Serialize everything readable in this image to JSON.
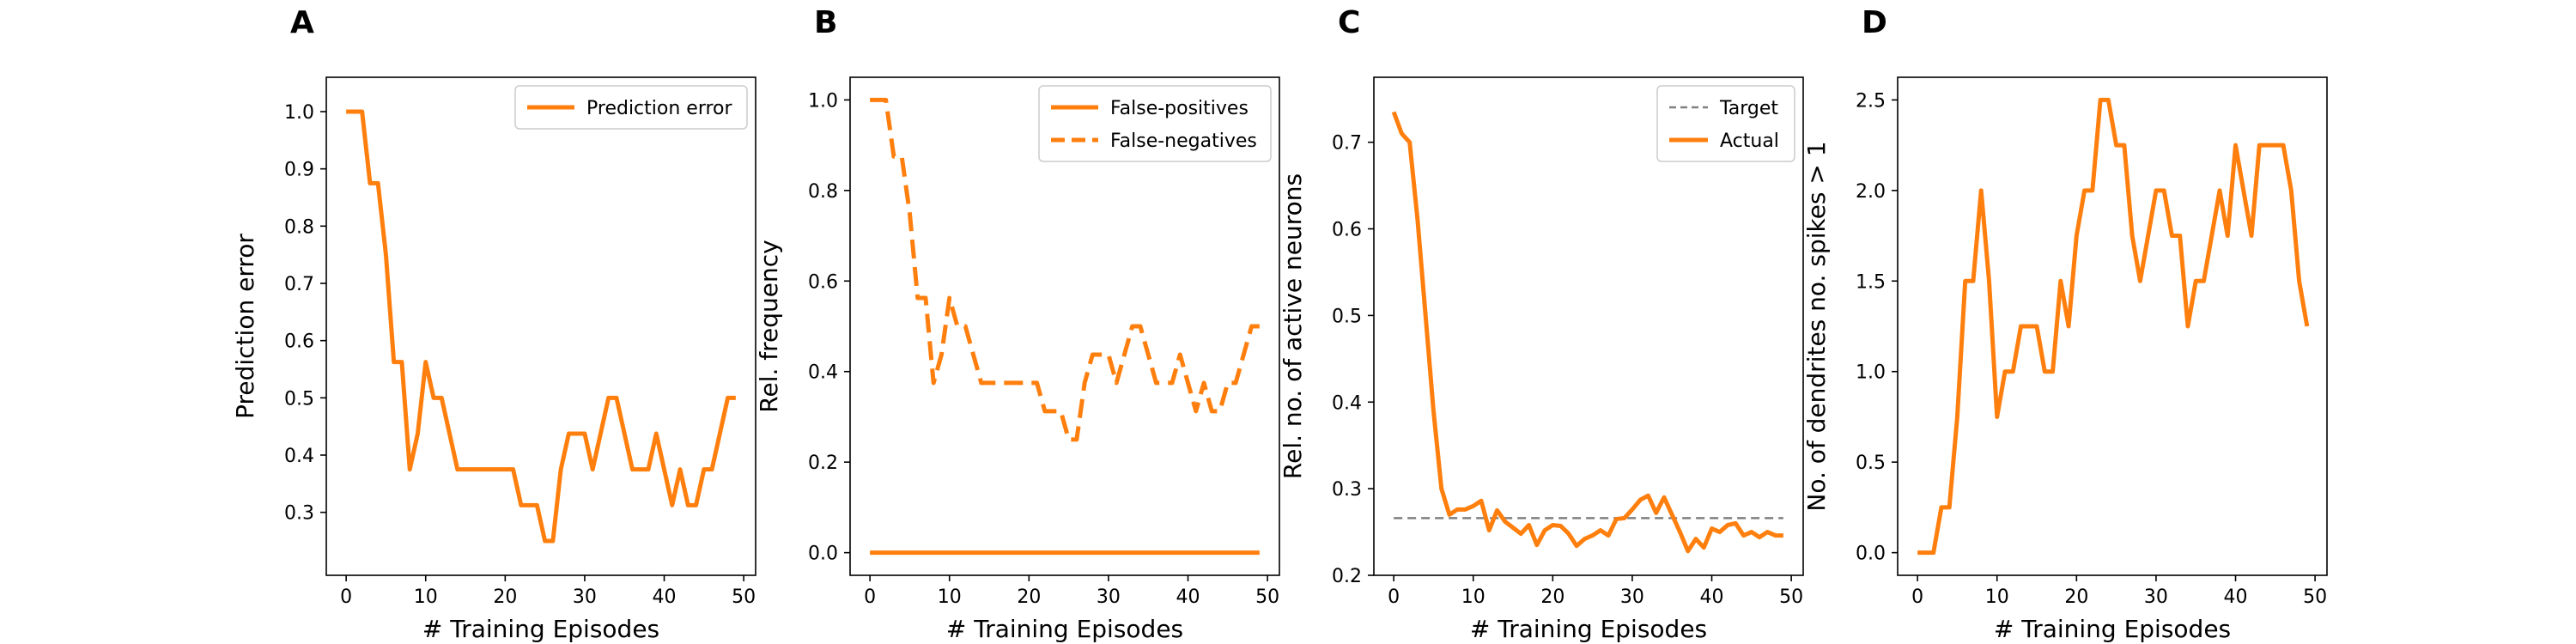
{
  "figure": {
    "background": "#ffffff"
  },
  "colors": {
    "series": "#ff7f0e",
    "target": "#808080",
    "axis": "#000000",
    "legend_border": "#cccccc"
  },
  "chart_data": [
    {
      "panel": "A",
      "type": "line",
      "title": "",
      "xlabel": "# Training Episodes",
      "ylabel": "Prediction error",
      "xlim": [
        -2.5,
        51.5
      ],
      "ylim": [
        0.19,
        1.06
      ],
      "xticks": [
        0,
        10,
        20,
        30,
        40,
        50
      ],
      "yticks": [
        0.3,
        0.4,
        0.5,
        0.6,
        0.7,
        0.8,
        0.9,
        1.0
      ],
      "ytick_labels": [
        "0.3",
        "0.4",
        "0.5",
        "0.6",
        "0.7",
        "0.8",
        "0.9",
        "1.0"
      ],
      "grid": false,
      "legend": {
        "position": "top-right"
      },
      "series": [
        {
          "name": "Prediction error",
          "color": "#ff7f0e",
          "dash": "solid",
          "x": [
            0,
            1,
            2,
            3,
            4,
            5,
            6,
            7,
            8,
            9,
            10,
            11,
            12,
            13,
            14,
            15,
            16,
            17,
            18,
            19,
            20,
            21,
            22,
            23,
            24,
            25,
            26,
            27,
            28,
            29,
            30,
            31,
            32,
            33,
            34,
            35,
            36,
            37,
            38,
            39,
            40,
            41,
            42,
            43,
            44,
            45,
            46,
            47,
            48,
            49
          ],
          "y": [
            1.0,
            1.0,
            1.0,
            0.875,
            0.875,
            0.75,
            0.5625,
            0.5625,
            0.375,
            0.4375,
            0.5625,
            0.5,
            0.5,
            0.4375,
            0.375,
            0.375,
            0.375,
            0.375,
            0.375,
            0.375,
            0.375,
            0.375,
            0.3125,
            0.3125,
            0.3125,
            0.25,
            0.25,
            0.375,
            0.4375,
            0.4375,
            0.4375,
            0.375,
            0.4375,
            0.5,
            0.5,
            0.4375,
            0.375,
            0.375,
            0.375,
            0.4375,
            0.375,
            0.3125,
            0.375,
            0.3125,
            0.3125,
            0.375,
            0.375,
            0.4375,
            0.5,
            0.5
          ]
        }
      ]
    },
    {
      "panel": "B",
      "type": "line",
      "title": "",
      "xlabel": "# Training Episodes",
      "ylabel": "Rel. frequency",
      "xlim": [
        -2.5,
        51.5
      ],
      "ylim": [
        -0.05,
        1.05
      ],
      "xticks": [
        0,
        10,
        20,
        30,
        40,
        50
      ],
      "yticks": [
        0.0,
        0.2,
        0.4,
        0.6,
        0.8,
        1.0
      ],
      "ytick_labels": [
        "0.0",
        "0.2",
        "0.4",
        "0.6",
        "0.8",
        "1.0"
      ],
      "grid": false,
      "legend": {
        "position": "top-right"
      },
      "series": [
        {
          "name": "False-positives",
          "color": "#ff7f0e",
          "dash": "solid",
          "x": [
            0,
            1,
            2,
            3,
            4,
            5,
            6,
            7,
            8,
            9,
            10,
            11,
            12,
            13,
            14,
            15,
            16,
            17,
            18,
            19,
            20,
            21,
            22,
            23,
            24,
            25,
            26,
            27,
            28,
            29,
            30,
            31,
            32,
            33,
            34,
            35,
            36,
            37,
            38,
            39,
            40,
            41,
            42,
            43,
            44,
            45,
            46,
            47,
            48,
            49
          ],
          "y": [
            0,
            0,
            0,
            0,
            0,
            0,
            0,
            0,
            0,
            0,
            0,
            0,
            0,
            0,
            0,
            0,
            0,
            0,
            0,
            0,
            0,
            0,
            0,
            0,
            0,
            0,
            0,
            0,
            0,
            0,
            0,
            0,
            0,
            0,
            0,
            0,
            0,
            0,
            0,
            0,
            0,
            0,
            0,
            0,
            0,
            0,
            0,
            0,
            0,
            0
          ]
        },
        {
          "name": "False-negatives",
          "color": "#ff7f0e",
          "dash": "dashed",
          "x": [
            0,
            1,
            2,
            3,
            4,
            5,
            6,
            7,
            8,
            9,
            10,
            11,
            12,
            13,
            14,
            15,
            16,
            17,
            18,
            19,
            20,
            21,
            22,
            23,
            24,
            25,
            26,
            27,
            28,
            29,
            30,
            31,
            32,
            33,
            34,
            35,
            36,
            37,
            38,
            39,
            40,
            41,
            42,
            43,
            44,
            45,
            46,
            47,
            48,
            49
          ],
          "y": [
            1.0,
            1.0,
            1.0,
            0.875,
            0.875,
            0.75,
            0.5625,
            0.5625,
            0.375,
            0.4375,
            0.5625,
            0.5,
            0.5,
            0.4375,
            0.375,
            0.375,
            0.375,
            0.375,
            0.375,
            0.375,
            0.375,
            0.375,
            0.3125,
            0.3125,
            0.3125,
            0.25,
            0.25,
            0.375,
            0.4375,
            0.4375,
            0.4375,
            0.375,
            0.4375,
            0.5,
            0.5,
            0.4375,
            0.375,
            0.375,
            0.375,
            0.4375,
            0.375,
            0.3125,
            0.375,
            0.3125,
            0.3125,
            0.375,
            0.375,
            0.4375,
            0.5,
            0.5
          ]
        }
      ]
    },
    {
      "panel": "C",
      "type": "line",
      "title": "",
      "xlabel": "# Training Episodes",
      "ylabel": "Rel. no. of active neurons",
      "xlim": [
        -2.5,
        51.5
      ],
      "ylim": [
        0.2,
        0.775
      ],
      "xticks": [
        0,
        10,
        20,
        30,
        40,
        50
      ],
      "yticks": [
        0.2,
        0.3,
        0.4,
        0.5,
        0.6,
        0.7
      ],
      "ytick_labels": [
        "0.2",
        "0.3",
        "0.4",
        "0.5",
        "0.6",
        "0.7"
      ],
      "grid": false,
      "legend": {
        "position": "top-right"
      },
      "series": [
        {
          "name": "Target",
          "color": "#808080",
          "dash": "dashed",
          "x": [
            0,
            49
          ],
          "y": [
            0.266,
            0.266
          ]
        },
        {
          "name": "Actual",
          "color": "#ff7f0e",
          "dash": "solid",
          "x": [
            0,
            1,
            2,
            3,
            4,
            5,
            6,
            7,
            8,
            9,
            10,
            11,
            12,
            13,
            14,
            15,
            16,
            17,
            18,
            19,
            20,
            21,
            22,
            23,
            24,
            25,
            26,
            27,
            28,
            29,
            30,
            31,
            32,
            33,
            34,
            35,
            36,
            37,
            38,
            39,
            40,
            41,
            42,
            43,
            44,
            45,
            46,
            47,
            48,
            49
          ],
          "y": [
            0.735,
            0.71,
            0.7,
            0.61,
            0.5,
            0.39,
            0.3,
            0.27,
            0.276,
            0.276,
            0.28,
            0.286,
            0.252,
            0.275,
            0.262,
            0.255,
            0.248,
            0.258,
            0.235,
            0.252,
            0.258,
            0.257,
            0.248,
            0.234,
            0.242,
            0.246,
            0.252,
            0.246,
            0.265,
            0.266,
            0.276,
            0.287,
            0.292,
            0.272,
            0.29,
            0.27,
            0.25,
            0.228,
            0.242,
            0.232,
            0.254,
            0.25,
            0.258,
            0.26,
            0.246,
            0.25,
            0.244,
            0.25,
            0.246,
            0.246
          ]
        }
      ]
    },
    {
      "panel": "D",
      "type": "line",
      "title": "",
      "xlabel": "# Training Episodes",
      "ylabel": "No. of dendrites no. spikes > 1",
      "xlim": [
        -2.5,
        51.5
      ],
      "ylim": [
        -0.125,
        2.625
      ],
      "xticks": [
        0,
        10,
        20,
        30,
        40,
        50
      ],
      "yticks": [
        0.0,
        0.5,
        1.0,
        1.5,
        2.0,
        2.5
      ],
      "ytick_labels": [
        "0.0",
        "0.5",
        "1.0",
        "1.5",
        "2.0",
        "2.5"
      ],
      "grid": false,
      "legend": {
        "position": "none"
      },
      "series": [
        {
          "color": "#ff7f0e",
          "dash": "solid",
          "x": [
            0,
            1,
            2,
            3,
            4,
            5,
            6,
            7,
            8,
            9,
            10,
            11,
            12,
            13,
            14,
            15,
            16,
            17,
            18,
            19,
            20,
            21,
            22,
            23,
            24,
            25,
            26,
            27,
            28,
            29,
            30,
            31,
            32,
            33,
            34,
            35,
            36,
            37,
            38,
            39,
            40,
            41,
            42,
            43,
            44,
            45,
            46,
            47,
            48,
            49
          ],
          "y": [
            0,
            0,
            0,
            0.25,
            0.25,
            0.75,
            1.5,
            1.5,
            2.0,
            1.5,
            0.75,
            1.0,
            1.0,
            1.25,
            1.25,
            1.25,
            1.0,
            1.0,
            1.5,
            1.25,
            1.75,
            2.0,
            2.0,
            2.5,
            2.5,
            2.25,
            2.25,
            1.75,
            1.5,
            1.75,
            2.0,
            2.0,
            1.75,
            1.75,
            1.25,
            1.5,
            1.5,
            1.75,
            2.0,
            1.75,
            2.25,
            2.0,
            1.75,
            2.25,
            2.25,
            2.25,
            2.25,
            2.0,
            1.5,
            1.25
          ]
        }
      ]
    }
  ]
}
